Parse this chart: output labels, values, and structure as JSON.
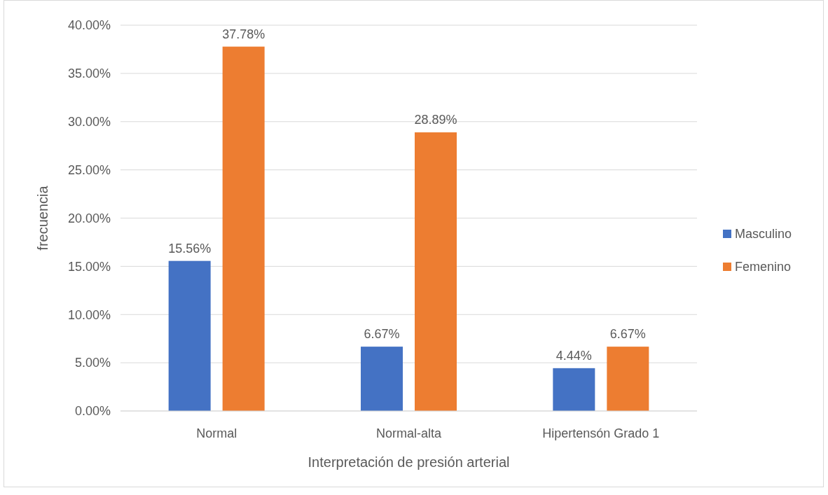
{
  "chart_data": {
    "type": "bar",
    "xlabel": "Interpretación de presión arterial",
    "ylabel": "frecuencia",
    "categories": [
      "Normal",
      "Normal-alta",
      "Hipertensón Grado 1"
    ],
    "series": [
      {
        "name": "Masculino",
        "color": "#4472c4",
        "values": [
          15.56,
          6.67,
          4.44
        ],
        "value_labels": [
          "15.56%",
          "6.67%",
          "4.44%"
        ]
      },
      {
        "name": "Femenino",
        "color": "#ed7d31",
        "values": [
          37.78,
          28.89,
          6.67
        ],
        "value_labels": [
          "37.78%",
          "28.89%",
          "6.67%"
        ]
      }
    ],
    "ylim": [
      0,
      40
    ],
    "yticks": [
      {
        "value": 0,
        "label": "0.00%"
      },
      {
        "value": 5,
        "label": "5.00%"
      },
      {
        "value": 10,
        "label": "10.00%"
      },
      {
        "value": 15,
        "label": "15.00%"
      },
      {
        "value": 20,
        "label": "20.00%"
      },
      {
        "value": 25,
        "label": "25.00%"
      },
      {
        "value": 30,
        "label": "30.00%"
      },
      {
        "value": 35,
        "label": "35.00%"
      },
      {
        "value": 40,
        "label": "40.00%"
      }
    ],
    "grid": "y",
    "legend": "right"
  }
}
